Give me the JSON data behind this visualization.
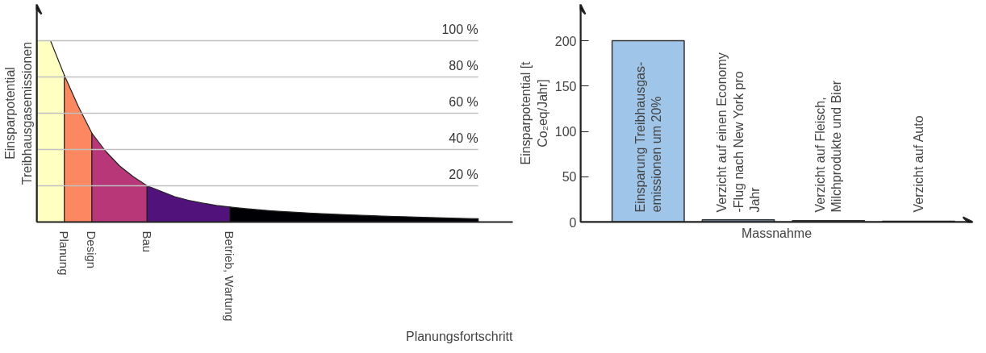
{
  "chart_data": [
    {
      "type": "area",
      "ylabel": "Einsparpotential Treibhausgasemissionen",
      "xlabel": "Planungsfortschritt",
      "categories": [
        null,
        null,
        null,
        null,
        null,
        null,
        null,
        null,
        null,
        null,
        null,
        null,
        null,
        null,
        null,
        null,
        null,
        null,
        null,
        null,
        null,
        null,
        null,
        null,
        null,
        null,
        null,
        null,
        null,
        null,
        null,
        null,
        null
      ],
      "ylim": [
        0,
        120
      ],
      "series": [
        {
          "color": "#ffffc2",
          "values": [
            100,
            100,
            81,
            null,
            null,
            null,
            null,
            null,
            null,
            null,
            null,
            null,
            null,
            null,
            null,
            null,
            null,
            null,
            null,
            null,
            null,
            null,
            null,
            null,
            null,
            null,
            null,
            null,
            null,
            null,
            null,
            null,
            null
          ]
        },
        {
          "name": "Planung",
          "color": "#fb8861",
          "values": [
            null,
            null,
            81,
            64,
            49,
            null,
            null,
            null,
            null,
            null,
            null,
            null,
            null,
            null,
            null,
            null,
            null,
            null,
            null,
            null,
            null,
            null,
            null,
            null,
            null,
            null,
            null,
            null,
            null,
            null,
            null,
            null,
            null
          ]
        },
        {
          "name": "Design",
          "color": "#b73779",
          "values": [
            null,
            null,
            null,
            null,
            49,
            39,
            31,
            25,
            20,
            null,
            null,
            null,
            null,
            null,
            null,
            null,
            null,
            null,
            null,
            null,
            null,
            null,
            null,
            null,
            null,
            null,
            null,
            null,
            null,
            null,
            null,
            null,
            null
          ]
        },
        {
          "name": "Bau",
          "color": "#51127c",
          "values": [
            null,
            null,
            null,
            null,
            null,
            null,
            null,
            null,
            20,
            17,
            14,
            12,
            10.5,
            9.2,
            8.3,
            null,
            null,
            null,
            null,
            null,
            null,
            null,
            null,
            null,
            null,
            null,
            null,
            null,
            null,
            null,
            null,
            null,
            null
          ]
        },
        {
          "name": "Betrieb, Wartung",
          "color": "#000004",
          "values": [
            null,
            null,
            null,
            null,
            null,
            null,
            null,
            null,
            null,
            null,
            null,
            null,
            null,
            null,
            8.3,
            7.5,
            6.8,
            6.2,
            5.7,
            5.3,
            4.9,
            4.5,
            4.2,
            3.9,
            3.6,
            3.3,
            3.1,
            2.9,
            2.6,
            2.4,
            2.2,
            2.0,
            1.8
          ]
        }
      ],
      "ref_lines": [
        {
          "axis": "y",
          "value": 100,
          "label": "100 %",
          "color": "#c0c0c0"
        },
        {
          "axis": "y",
          "value": 80,
          "label": "80 %",
          "color": "#c0c0c0"
        },
        {
          "axis": "y",
          "value": 60,
          "label": "60 %",
          "color": "#c0c0c0"
        },
        {
          "axis": "y",
          "value": 40,
          "label": "40 %",
          "color": "#c0c0c0"
        },
        {
          "axis": "y",
          "value": 20,
          "label": "20 %",
          "color": "#c0c0c0"
        }
      ]
    },
    {
      "type": "bar",
      "ylabel": "Einsparpotential [t Co₂eq/Jahr]",
      "xlabel": "Massnahme",
      "categories": [
        "Einsparung Treibhausgas- emissionen um 20%",
        "Verzicht auf einen Economy -Flug nach New York  pro Jahr",
        "Verzicht auf Fleisch, Milchprodukte und Bier",
        "Verzicht auf Auto"
      ],
      "values": [
        200,
        2.5,
        1.5,
        1
      ],
      "colors": [
        "#9fc5e8",
        "#8fb3d9",
        "#8fb3d9",
        "#8fb3d9"
      ],
      "ylim": [
        0,
        240
      ],
      "yticks": [
        0,
        50,
        100,
        150,
        200
      ],
      "tick_labels": "y"
    }
  ]
}
